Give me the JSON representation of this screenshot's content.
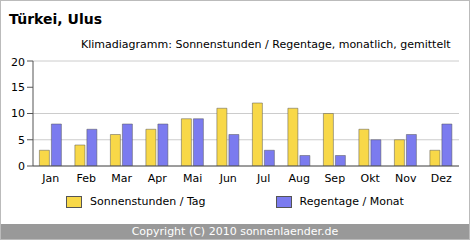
{
  "chart_data": {
    "type": "bar",
    "title": "Türkei, Ulus",
    "subtitle": "Klimadiagramm: Sonnenstunden / Regentage, monatlich, gemittelt",
    "categories": [
      "Jan",
      "Feb",
      "Mar",
      "Apr",
      "Mai",
      "Jun",
      "Jul",
      "Aug",
      "Sep",
      "Okt",
      "Nov",
      "Dez"
    ],
    "series": [
      {
        "name": "Sonnenstunden / Tag",
        "color": "#f8d848",
        "values": [
          3,
          4,
          6,
          7,
          9,
          11,
          12,
          11,
          10,
          7,
          5,
          3
        ]
      },
      {
        "name": "Regentage / Monat",
        "color": "#7b7bef",
        "values": [
          8,
          7,
          8,
          8,
          9,
          6,
          3,
          2,
          2,
          5,
          6,
          8
        ]
      }
    ],
    "ylim": [
      0,
      20
    ],
    "yticks": [
      0,
      5,
      10,
      15,
      20
    ],
    "grid": true,
    "legend": "bottom",
    "annotations": [
      "Copyright (C) 2010 sonnenlaender.de"
    ]
  }
}
